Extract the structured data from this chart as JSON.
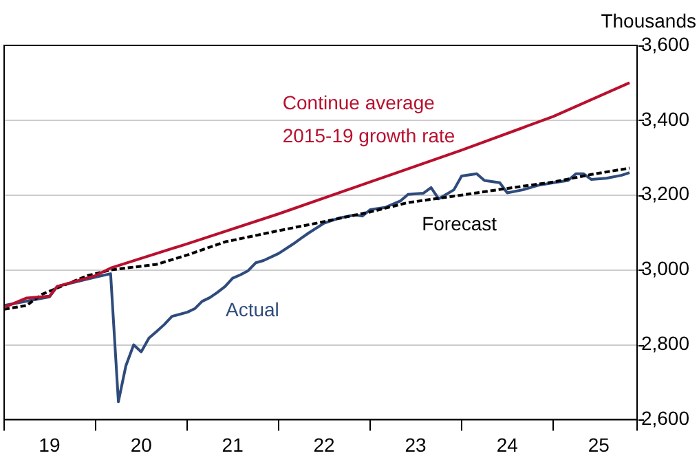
{
  "chart_data": {
    "type": "line",
    "ylabel": "Thousands",
    "xlim": [
      "2019-01",
      "2025-12"
    ],
    "xticks": [
      {
        "value": "2019-01",
        "label": null
      },
      {
        "value": "2019-07",
        "label": "19"
      },
      {
        "value": "2020-01",
        "label": null
      },
      {
        "value": "2020-07",
        "label": "20"
      },
      {
        "value": "2021-01",
        "label": null
      },
      {
        "value": "2021-07",
        "label": "21"
      },
      {
        "value": "2022-01",
        "label": null
      },
      {
        "value": "2022-07",
        "label": "22"
      },
      {
        "value": "2023-01",
        "label": null
      },
      {
        "value": "2023-07",
        "label": "23"
      },
      {
        "value": "2024-01",
        "label": null
      },
      {
        "value": "2024-07",
        "label": "24"
      },
      {
        "value": "2025-01",
        "label": null
      },
      {
        "value": "2025-07",
        "label": "25"
      },
      {
        "value": "2025-12",
        "label": null
      }
    ],
    "ylim": [
      2600,
      3600
    ],
    "yticks": [
      {
        "value": 2600,
        "label": "2,600"
      },
      {
        "value": 2800,
        "label": "2,800"
      },
      {
        "value": 3000,
        "label": "3,000"
      },
      {
        "value": 3200,
        "label": "3,200"
      },
      {
        "value": 3400,
        "label": "3,400"
      },
      {
        "value": 3600,
        "label": "3,600"
      }
    ],
    "grid": "y",
    "legend": false,
    "marker": "none",
    "series": [
      {
        "name": "Continue average 2015-19 growth rate",
        "color": "#b8102e",
        "line_style": "solid",
        "x": [
          "2019-01",
          "2019-04",
          "2019-07",
          "2019-08",
          "2020-01",
          "2020-03",
          "2021-01",
          "2022-01",
          "2023-01",
          "2024-01",
          "2025-01",
          "2025-11"
        ],
        "values": [
          2900,
          2925,
          2930,
          2956,
          2985,
          3005,
          3070,
          3150,
          3235,
          3320,
          3410,
          3500
        ]
      },
      {
        "name": "Forecast",
        "color": "#000000",
        "line_style": "dashed",
        "x": [
          "2019-01",
          "2019-04",
          "2019-06",
          "2019-12",
          "2020-03",
          "2020-09",
          "2021-01",
          "2021-06",
          "2022-01",
          "2022-06",
          "2023-01",
          "2023-06",
          "2024-01",
          "2024-06",
          "2025-01",
          "2025-06",
          "2025-11"
        ],
        "values": [
          2895,
          2905,
          2935,
          2985,
          3000,
          3015,
          3040,
          3075,
          3105,
          3125,
          3155,
          3180,
          3200,
          3215,
          3235,
          3255,
          3272
        ]
      },
      {
        "name": "Actual",
        "color": "#2f4b7c",
        "line_style": "solid",
        "x": [
          "2019-01",
          "2019-07",
          "2019-08",
          "2020-01",
          "2020-03",
          "2020-04",
          "2020-05",
          "2020-06",
          "2020-07",
          "2020-08",
          "2020-09",
          "2020-10",
          "2020-11",
          "2021-01",
          "2021-02",
          "2021-03",
          "2021-04",
          "2021-05",
          "2021-06",
          "2021-07",
          "2021-08",
          "2021-09",
          "2021-10",
          "2021-11",
          "2022-01",
          "2022-03",
          "2022-04",
          "2022-05",
          "2022-07",
          "2022-09",
          "2022-11",
          "2022-12",
          "2023-01",
          "2023-03",
          "2023-05",
          "2023-06",
          "2023-08",
          "2023-09",
          "2023-10",
          "2023-12",
          "2024-01",
          "2024-03",
          "2024-04",
          "2024-06",
          "2024-07",
          "2024-09",
          "2024-11",
          "2025-01",
          "2025-03",
          "2025-04",
          "2025-05",
          "2025-06",
          "2025-08",
          "2025-10",
          "2025-11"
        ],
        "values": [
          2905,
          2928,
          2956,
          2981,
          2990,
          2648,
          2744,
          2800,
          2781,
          2818,
          2836,
          2854,
          2876,
          2887,
          2897,
          2916,
          2926,
          2940,
          2956,
          2978,
          2987,
          2998,
          3019,
          3025,
          3044,
          3070,
          3085,
          3099,
          3125,
          3139,
          3147,
          3144,
          3161,
          3167,
          3184,
          3202,
          3205,
          3220,
          3190,
          3214,
          3251,
          3257,
          3239,
          3233,
          3206,
          3214,
          3226,
          3233,
          3239,
          3257,
          3257,
          3242,
          3245,
          3253,
          3260
        ]
      }
    ]
  }
}
